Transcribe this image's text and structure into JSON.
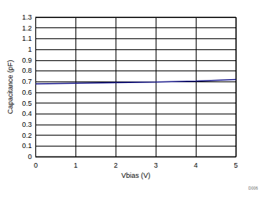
{
  "chart_data": {
    "type": "line",
    "x_label": "Vbias (V)",
    "y_label": "Capacitance (pF)",
    "annotation": "D006",
    "x": [
      0,
      1,
      2,
      3,
      4,
      5
    ],
    "values": [
      0.68,
      0.685,
      0.69,
      0.695,
      0.705,
      0.72
    ],
    "color": "#1c1c8c",
    "xlim": [
      0,
      5
    ],
    "xticks": [
      0,
      1,
      2,
      3,
      4,
      5
    ],
    "ylim": [
      0,
      1.3
    ],
    "yticks": [
      0,
      0.1,
      0.2,
      0.3,
      0.4,
      0.5,
      0.6,
      0.7,
      0.8,
      0.9,
      1,
      1.1,
      1.2,
      1.3
    ],
    "grid": true
  }
}
